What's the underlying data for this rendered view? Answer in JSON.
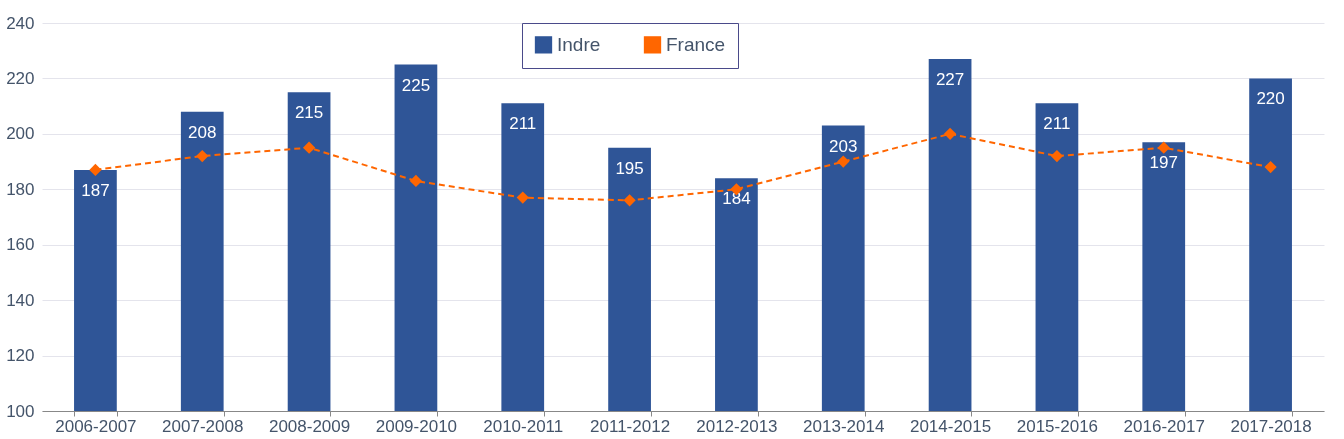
{
  "chart_data": {
    "type": "bar",
    "categories": [
      "2006-2007",
      "2007-2008",
      "2008-2009",
      "2009-2010",
      "2010-2011",
      "2011-2012",
      "2012-2013",
      "2013-2014",
      "2014-2015",
      "2015-2016",
      "2016-2017",
      "2017-2018"
    ],
    "series": [
      {
        "name": "Indre",
        "color": "#2f5597",
        "values": [
          187,
          208,
          215,
          225,
          211,
          195,
          184,
          203,
          227,
          211,
          197,
          220
        ],
        "value_labels": [
          "187",
          "208",
          "215",
          "225",
          "211",
          "195",
          "184",
          "203",
          "227",
          "211",
          "197",
          "220"
        ]
      },
      {
        "name": "France",
        "type": "line",
        "color": "#ff6600",
        "values": [
          187,
          192,
          195,
          183,
          177,
          176,
          180,
          190,
          200,
          192,
          195,
          188
        ],
        "marker": "diamond",
        "line_style": "dashed"
      }
    ],
    "ylim": [
      100,
      240
    ],
    "yticks": [
      100,
      120,
      140,
      160,
      180,
      200,
      220,
      240
    ],
    "grid": "y",
    "legend": "top"
  }
}
